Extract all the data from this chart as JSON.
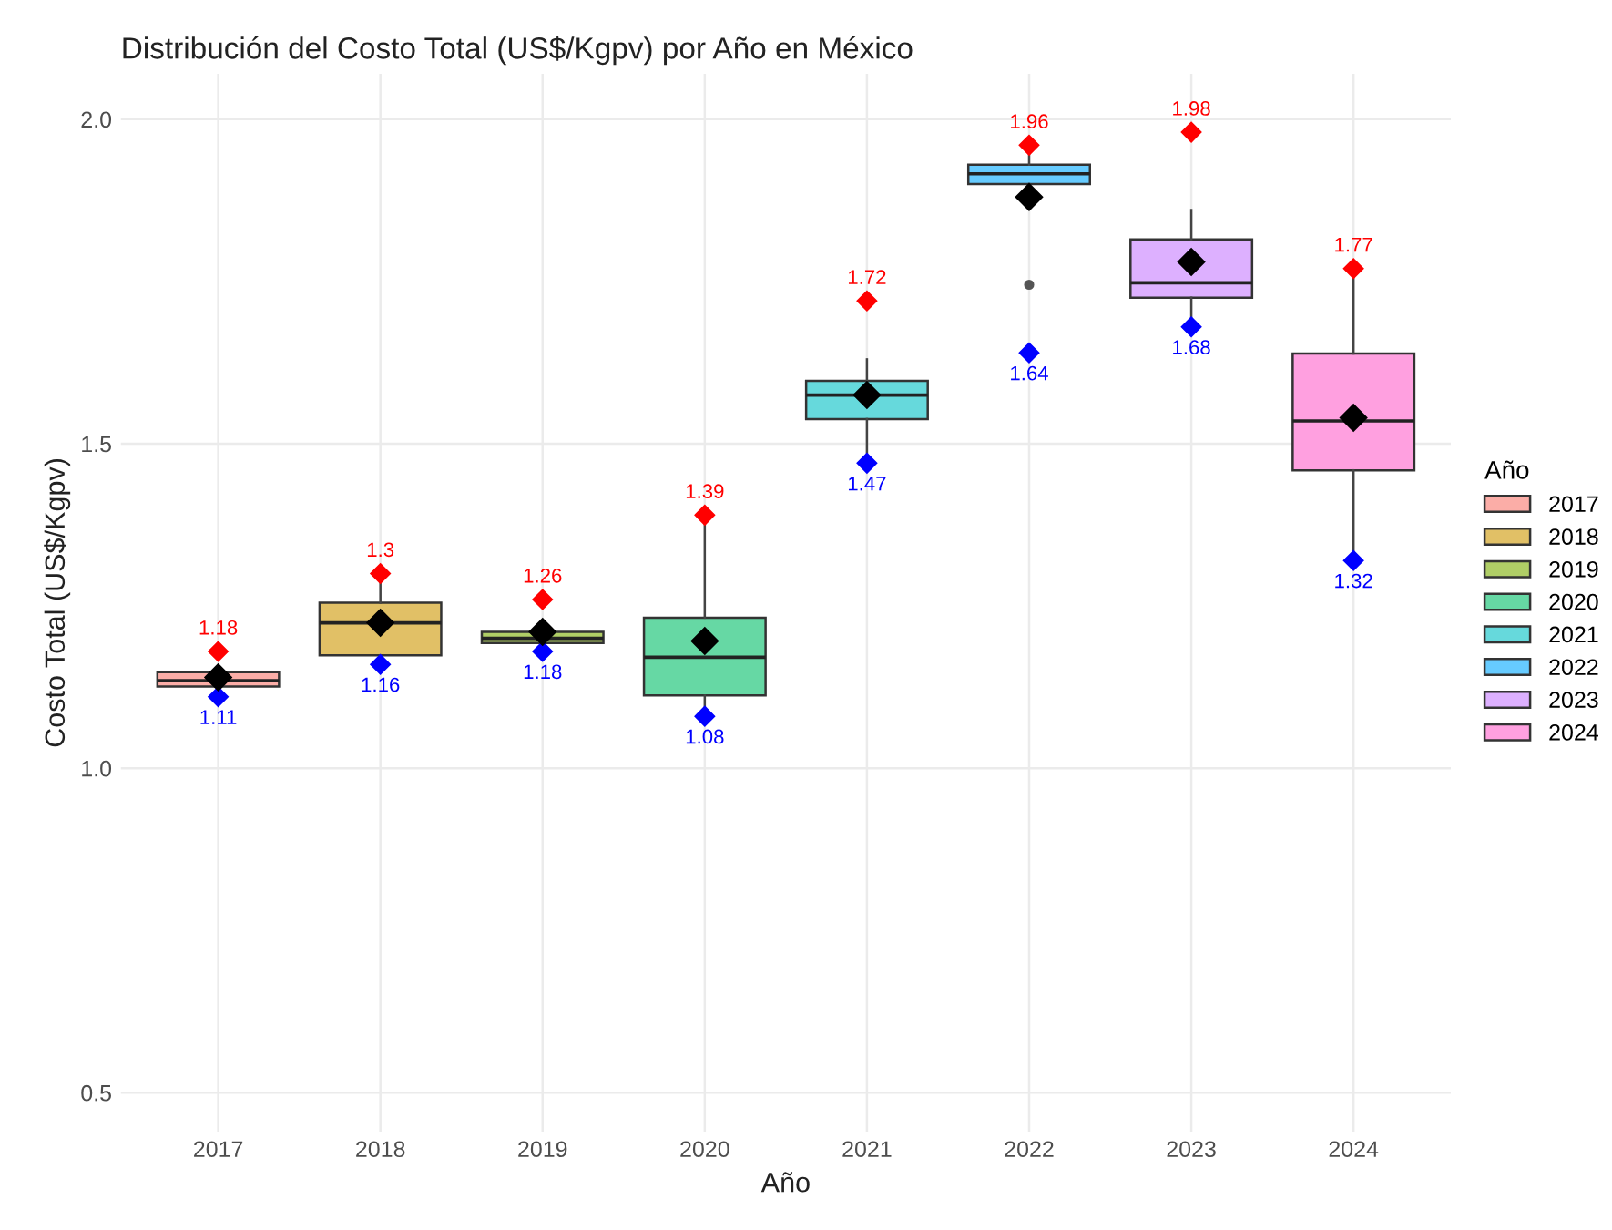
{
  "chart_data": {
    "type": "box",
    "title": "Distribución del Costo Total (US$/Kgpv) por Año en México",
    "xlabel": "Año",
    "ylabel": "Costo Total (US$/Kgpv)",
    "legend_title": "Año",
    "legend": "right",
    "grid": true,
    "categories": [
      "2017",
      "2018",
      "2019",
      "2020",
      "2021",
      "2022",
      "2023",
      "2024"
    ],
    "series": [
      {
        "name": "2017",
        "color": "#fbada7",
        "boxes": [
          {
            "low": 1.12,
            "q1": 1.126,
            "median": 1.135,
            "q3": 1.148,
            "high": 1.15,
            "mean": 1.14
          },
          null,
          null,
          null,
          null,
          null,
          null,
          null
        ]
      },
      {
        "name": "2018",
        "color": "#e1c066",
        "boxes": [
          null,
          {
            "low": 1.17,
            "q1": 1.174,
            "median": 1.224,
            "q3": 1.255,
            "high": 1.3,
            "mean": 1.224
          },
          null,
          null,
          null,
          null,
          null,
          null
        ]
      },
      {
        "name": "2019",
        "color": "#b0ce66",
        "boxes": [
          null,
          null,
          {
            "low": 1.19,
            "q1": 1.193,
            "median": 1.2,
            "q3": 1.21,
            "high": 1.212,
            "mean": 1.21
          },
          null,
          null,
          null,
          null,
          null
        ]
      },
      {
        "name": "2020",
        "color": "#66d8a4",
        "boxes": [
          null,
          null,
          null,
          {
            "low": 1.08,
            "q1": 1.112,
            "median": 1.171,
            "q3": 1.232,
            "high": 1.39,
            "mean": 1.196
          },
          null,
          null,
          null,
          null
        ]
      },
      {
        "name": "2021",
        "color": "#66d9dc",
        "boxes": [
          null,
          null,
          null,
          null,
          {
            "low": 1.47,
            "q1": 1.538,
            "median": 1.575,
            "q3": 1.597,
            "high": 1.63,
            "mean": 1.575
          },
          null,
          null,
          null
        ]
      },
      {
        "name": "2022",
        "color": "#66cbff",
        "boxes": [
          null,
          null,
          null,
          null,
          null,
          {
            "low": 1.9,
            "q1": 1.9,
            "median": 1.916,
            "q3": 1.93,
            "high": 1.96,
            "mean": 1.88,
            "outliers": [
              1.745
            ]
          },
          null,
          null
        ]
      },
      {
        "name": "2023",
        "color": "#ddb0ff",
        "boxes": [
          null,
          null,
          null,
          null,
          null,
          null,
          {
            "low": 1.68,
            "q1": 1.725,
            "median": 1.748,
            "q3": 1.815,
            "high": 1.86,
            "mean": 1.78
          },
          null
        ]
      },
      {
        "name": "2024",
        "color": "#ffa0e0",
        "boxes": [
          null,
          null,
          null,
          null,
          null,
          null,
          null,
          {
            "low": 1.32,
            "q1": 1.459,
            "median": 1.535,
            "q3": 1.639,
            "high": 1.77,
            "mean": 1.54
          }
        ]
      },
      {
        "type": "scatter",
        "values": [
          1.18,
          1.3,
          1.26,
          1.39,
          1.72,
          1.96,
          1.98,
          1.77
        ],
        "color": "#ff0000",
        "marker": "diamond",
        "value_labels": [
          "1.18",
          "1.3",
          "1.26",
          "1.39",
          "1.72",
          "1.96",
          "1.98",
          "1.77"
        ]
      },
      {
        "type": "scatter",
        "values": [
          1.11,
          1.16,
          1.18,
          1.08,
          1.47,
          1.64,
          1.68,
          1.32
        ],
        "color": "#0000ff",
        "marker": "diamond",
        "value_labels": [
          "1.11",
          "1.16",
          "1.18",
          "1.08",
          "1.47",
          "1.64",
          "1.68",
          "1.32"
        ]
      }
    ],
    "ylim": [
      0.44,
      2.07
    ],
    "yticks": [
      0.5,
      {
        "value": 1.0,
        "label": "1.0"
      },
      1.5,
      {
        "value": 2.0,
        "label": "2.0"
      }
    ]
  }
}
